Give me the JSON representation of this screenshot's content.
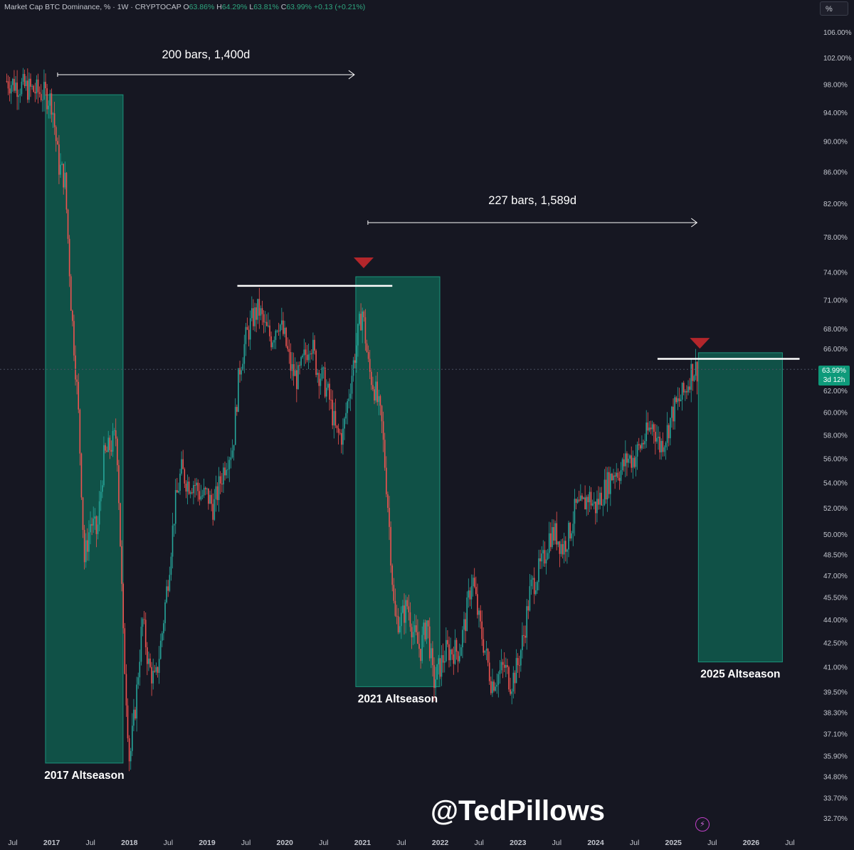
{
  "header": {
    "symbol": "Market Cap BTC Dominance, % · 1W · CRYPTOCAP",
    "o_label": "O",
    "open": "63.86%",
    "h_label": "H",
    "high": "64.29%",
    "l_label": "L",
    "low": "63.81%",
    "c_label": "C",
    "close": "63.99%",
    "change": "+0.13 (+0.21%)"
  },
  "unit_button": "%",
  "current_price": {
    "value": "63.99%",
    "countdown": "3d 12h"
  },
  "watermark": "@TedPillows",
  "bolt_icon": "lightning-icon",
  "colors": {
    "background": "#161722",
    "up": "#26a69a",
    "down": "#ef5350",
    "box": "#10564b",
    "box_border": "#1d9d83",
    "marker": "#b3262b",
    "annotation": "#ffffff"
  },
  "chart_data": {
    "type": "candlestick",
    "title": "Market Cap BTC Dominance, %",
    "timeframe": "1W",
    "scale": "log",
    "ylim": [
      32.7,
      106
    ],
    "y_ticks": [
      "106.00%",
      "102.00%",
      "98.00%",
      "94.00%",
      "90.00%",
      "86.00%",
      "82.00%",
      "78.00%",
      "74.00%",
      "71.00%",
      "68.00%",
      "66.00%",
      "62.00%",
      "60.00%",
      "58.00%",
      "56.00%",
      "54.00%",
      "52.00%",
      "50.00%",
      "48.50%",
      "47.00%",
      "45.50%",
      "44.00%",
      "42.50%",
      "41.00%",
      "39.50%",
      "38.30%",
      "37.10%",
      "35.90%",
      "34.80%",
      "33.70%",
      "32.70%"
    ],
    "x_ticks": [
      "Jul",
      "2017",
      "Jul",
      "2018",
      "Jul",
      "2019",
      "Jul",
      "2020",
      "Jul",
      "2021",
      "Jul",
      "2022",
      "Jul",
      "2023",
      "Jul",
      "2024",
      "Jul",
      "2025",
      "Jul",
      "2026",
      "Jul"
    ],
    "trend_points": [
      {
        "date": "2016-06",
        "value": 98.5
      },
      {
        "date": "2016-12",
        "value": 96.5
      },
      {
        "date": "2017-01",
        "value": 95.5
      },
      {
        "date": "2017-02",
        "value": 87
      },
      {
        "date": "2017-03",
        "value": 85
      },
      {
        "date": "2017-04",
        "value": 70
      },
      {
        "date": "2017-05",
        "value": 61
      },
      {
        "date": "2017-06",
        "value": 48
      },
      {
        "date": "2017-07",
        "value": 51
      },
      {
        "date": "2017-08",
        "value": 50
      },
      {
        "date": "2017-09",
        "value": 56
      },
      {
        "date": "2017-10",
        "value": 57
      },
      {
        "date": "2017-11",
        "value": 58
      },
      {
        "date": "2017-12",
        "value": 43
      },
      {
        "date": "2018-01",
        "value": 35.5
      },
      {
        "date": "2018-02",
        "value": 39
      },
      {
        "date": "2018-03",
        "value": 44
      },
      {
        "date": "2018-04",
        "value": 41
      },
      {
        "date": "2018-05",
        "value": 40
      },
      {
        "date": "2018-06",
        "value": 43
      },
      {
        "date": "2018-07",
        "value": 47
      },
      {
        "date": "2018-08",
        "value": 52
      },
      {
        "date": "2018-09",
        "value": 55
      },
      {
        "date": "2018-10",
        "value": 54
      },
      {
        "date": "2018-11",
        "value": 54
      },
      {
        "date": "2018-12",
        "value": 53
      },
      {
        "date": "2019-01",
        "value": 53
      },
      {
        "date": "2019-02",
        "value": 52
      },
      {
        "date": "2019-03",
        "value": 54
      },
      {
        "date": "2019-04",
        "value": 56
      },
      {
        "date": "2019-05",
        "value": 57
      },
      {
        "date": "2019-06",
        "value": 64
      },
      {
        "date": "2019-07",
        "value": 67
      },
      {
        "date": "2019-08",
        "value": 69
      },
      {
        "date": "2019-09",
        "value": 70
      },
      {
        "date": "2019-10",
        "value": 68
      },
      {
        "date": "2019-11",
        "value": 67
      },
      {
        "date": "2019-12",
        "value": 69
      },
      {
        "date": "2020-01",
        "value": 67
      },
      {
        "date": "2020-02",
        "value": 64
      },
      {
        "date": "2020-03",
        "value": 63
      },
      {
        "date": "2020-04",
        "value": 65
      },
      {
        "date": "2020-05",
        "value": 67
      },
      {
        "date": "2020-06",
        "value": 64
      },
      {
        "date": "2020-07",
        "value": 63
      },
      {
        "date": "2020-08",
        "value": 61
      },
      {
        "date": "2020-09",
        "value": 58
      },
      {
        "date": "2020-10",
        "value": 58
      },
      {
        "date": "2020-11",
        "value": 62
      },
      {
        "date": "2020-12",
        "value": 66
      },
      {
        "date": "2021-01",
        "value": 70
      },
      {
        "date": "2021-02",
        "value": 64
      },
      {
        "date": "2021-03",
        "value": 62
      },
      {
        "date": "2021-04",
        "value": 59
      },
      {
        "date": "2021-05",
        "value": 52
      },
      {
        "date": "2021-06",
        "value": 44
      },
      {
        "date": "2021-07",
        "value": 44
      },
      {
        "date": "2021-08",
        "value": 45
      },
      {
        "date": "2021-09",
        "value": 43
      },
      {
        "date": "2021-10",
        "value": 42
      },
      {
        "date": "2021-11",
        "value": 44
      },
      {
        "date": "2021-12",
        "value": 40
      },
      {
        "date": "2022-01",
        "value": 41
      },
      {
        "date": "2022-02",
        "value": 42
      },
      {
        "date": "2022-03",
        "value": 42
      },
      {
        "date": "2022-04",
        "value": 42
      },
      {
        "date": "2022-05",
        "value": 44
      },
      {
        "date": "2022-06",
        "value": 47
      },
      {
        "date": "2022-07",
        "value": 44
      },
      {
        "date": "2022-08",
        "value": 42
      },
      {
        "date": "2022-09",
        "value": 40
      },
      {
        "date": "2022-10",
        "value": 40.5
      },
      {
        "date": "2022-11",
        "value": 41
      },
      {
        "date": "2022-12",
        "value": 40
      },
      {
        "date": "2023-01",
        "value": 41
      },
      {
        "date": "2023-02",
        "value": 43
      },
      {
        "date": "2023-03",
        "value": 46
      },
      {
        "date": "2023-04",
        "value": 47
      },
      {
        "date": "2023-05",
        "value": 48
      },
      {
        "date": "2023-06",
        "value": 50
      },
      {
        "date": "2023-07",
        "value": 50
      },
      {
        "date": "2023-08",
        "value": 49
      },
      {
        "date": "2023-09",
        "value": 50
      },
      {
        "date": "2023-10",
        "value": 52
      },
      {
        "date": "2023-11",
        "value": 52
      },
      {
        "date": "2023-12",
        "value": 53
      },
      {
        "date": "2024-01",
        "value": 52
      },
      {
        "date": "2024-02",
        "value": 53
      },
      {
        "date": "2024-03",
        "value": 54
      },
      {
        "date": "2024-04",
        "value": 55
      },
      {
        "date": "2024-05",
        "value": 55
      },
      {
        "date": "2024-06",
        "value": 56
      },
      {
        "date": "2024-07",
        "value": 56
      },
      {
        "date": "2024-08",
        "value": 57
      },
      {
        "date": "2024-09",
        "value": 58
      },
      {
        "date": "2024-10",
        "value": 59
      },
      {
        "date": "2024-11",
        "value": 57
      },
      {
        "date": "2024-12",
        "value": 58
      },
      {
        "date": "2025-01",
        "value": 60
      },
      {
        "date": "2025-02",
        "value": 61
      },
      {
        "date": "2025-03",
        "value": 62
      },
      {
        "date": "2025-04",
        "value": 64
      },
      {
        "date": "2025-05",
        "value": 64
      }
    ],
    "annotations": {
      "range1": {
        "label": "200 bars, 1,400d",
        "from": "2016-12",
        "to": "2020-12"
      },
      "range2": {
        "label": "227 bars, 1,589d",
        "from": "2020-12",
        "to": "2025-05"
      },
      "levels": [
        {
          "value": 72.5,
          "from": "2019-07",
          "to": "2021-04"
        },
        {
          "value": 65,
          "from": "2024-12",
          "to": "2026-07"
        }
      ],
      "boxes": [
        {
          "label": "2017 Altseason",
          "from": "2016-12",
          "to": "2017-12",
          "top": 96.5,
          "bottom": 35.5
        },
        {
          "label": "2021 Altseason",
          "from": "2020-12",
          "to": "2022-01",
          "top": 73.5,
          "bottom": 39.8
        },
        {
          "label": "2025 Altseason",
          "from": "2025-05",
          "to": "2026-06",
          "top": 65.6,
          "bottom": 41.3
        }
      ],
      "markers": [
        {
          "date": "2021-01",
          "value": 75
        },
        {
          "date": "2025-05",
          "value": 66.5
        }
      ]
    }
  }
}
